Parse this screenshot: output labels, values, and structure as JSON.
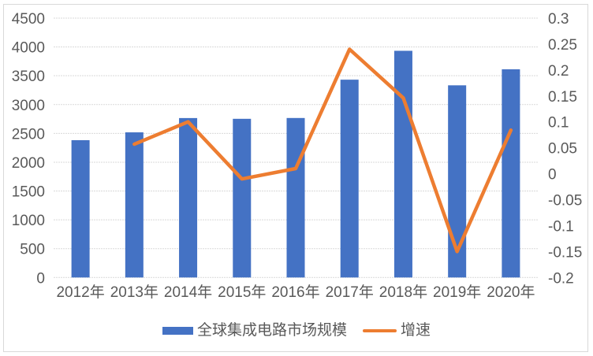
{
  "chart_data": {
    "type": "combo-bar-line",
    "title": "",
    "categories": [
      "2012年",
      "2013年",
      "2014年",
      "2015年",
      "2016年",
      "2017年",
      "2018年",
      "2019年",
      "2020年"
    ],
    "series": [
      {
        "name": "全球集成电路市场规模",
        "type": "bar",
        "axis": "left",
        "color": "#4472C4",
        "values": [
          2382,
          2518,
          2766,
          2753,
          2767,
          3432,
          3933,
          3334,
          3612
        ]
      },
      {
        "name": "增速",
        "type": "line",
        "axis": "right",
        "color": "#ED7D31",
        "values": [
          null,
          0.057,
          0.1,
          -0.01,
          0.01,
          0.24,
          0.146,
          -0.15,
          0.084
        ]
      }
    ],
    "left_axis": {
      "min": 0,
      "max": 4500,
      "step": 500,
      "tick_labels": [
        "4500",
        "4000",
        "3500",
        "3000",
        "2500",
        "2000",
        "1500",
        "1000",
        "500",
        "0"
      ]
    },
    "right_axis": {
      "min": -0.2,
      "max": 0.3,
      "step": 0.05,
      "tick_labels": [
        "0.3",
        "0.25",
        "0.2",
        "0.15",
        "0.1",
        "0.05",
        "0",
        "-0.05",
        "-0.1",
        "-0.15",
        "-0.2"
      ]
    },
    "grid": "horizontal",
    "legend_position": "bottom",
    "colors": {
      "bar": "#4472C4",
      "line": "#ED7D31",
      "grid": "#D9D9D9",
      "text": "#595959",
      "border": "#D9D9D9",
      "background": "#FFFFFF"
    }
  }
}
